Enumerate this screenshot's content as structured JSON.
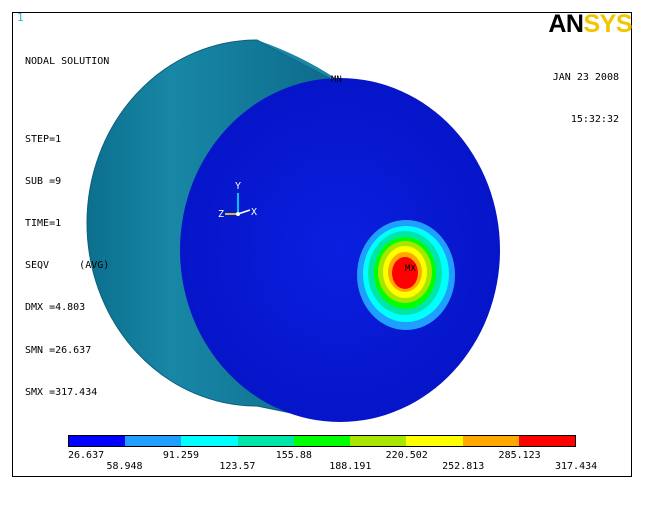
{
  "window_number": "1",
  "header": {
    "title": "NODAL SOLUTION",
    "step": "STEP=1",
    "sub": "SUB =9",
    "time": "TIME=1",
    "result": "SEQV     (AVG)",
    "dmx": "DMX =4.803",
    "smn": "SMN =26.637",
    "smx": "SMX =317.434"
  },
  "date": "JAN 23 2008",
  "time_of_day": "15:32:32",
  "logo": {
    "part1": "AN",
    "part2": "SYS"
  },
  "markers": {
    "min": "MN",
    "max": "MX"
  },
  "triad": {
    "x": "X",
    "y": "Y",
    "z": "Z"
  },
  "legend": {
    "colors": [
      "#0000ff",
      "#1f9fff",
      "#00ffff",
      "#00e6a8",
      "#00ff00",
      "#a8e600",
      "#ffff00",
      "#ffa800",
      "#ff0000"
    ],
    "labels_lower": [
      "26.637",
      "91.259",
      "155.88",
      "220.502",
      "285.123"
    ],
    "labels_upper": [
      "58.948",
      "123.57",
      "188.191",
      "252.813",
      "317.434"
    ]
  }
}
